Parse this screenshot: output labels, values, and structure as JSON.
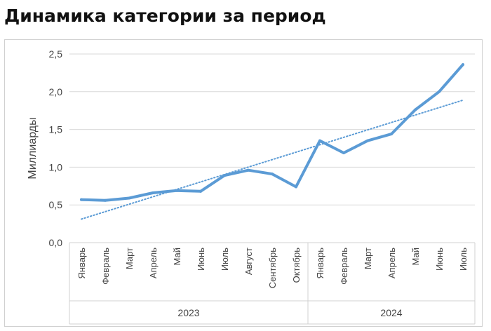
{
  "title": "Динамика категории за период",
  "chart_data": {
    "type": "line",
    "title": "",
    "ylabel": "Миллиарды",
    "xlabel": "",
    "ylim": [
      0,
      2.5
    ],
    "y_ticks": [
      "0,0",
      "0,5",
      "1,0",
      "1,5",
      "2,0",
      "2,5"
    ],
    "grid": true,
    "legend": "none",
    "groups": [
      {
        "label": "2023",
        "categories": [
          "Январь",
          "Февраль",
          "Март",
          "Апрель",
          "Май",
          "Июнь",
          "Июль",
          "Август",
          "Сентябрь",
          "Октябрь"
        ]
      },
      {
        "label": "2024",
        "categories": [
          "Январь",
          "Февраль",
          "Март",
          "Апрель",
          "Май",
          "Июнь",
          "Июль"
        ]
      }
    ],
    "series": [
      {
        "values": [
          0.57,
          0.56,
          0.59,
          0.66,
          0.69,
          0.68,
          0.89,
          0.96,
          0.91,
          0.74,
          1.35,
          1.19,
          1.35,
          1.44,
          1.76,
          2.0,
          2.36
        ],
        "color": "#5b9bd5"
      }
    ],
    "trendline": {
      "type": "linear",
      "style": "dotted",
      "color": "#5b9bd5"
    }
  }
}
